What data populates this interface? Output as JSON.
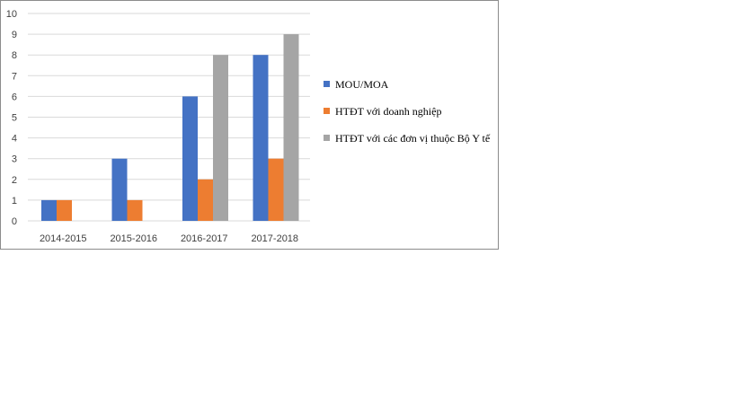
{
  "chart_data": {
    "type": "bar",
    "categories": [
      "2014-2015",
      "2015-2016",
      "2016-2017",
      "2017-2018"
    ],
    "series": [
      {
        "name": "MOU/MOA",
        "color": "#4472c4",
        "values": [
          1,
          3,
          6,
          8
        ]
      },
      {
        "name": "HTĐT  với doanh nghiệp",
        "color": "#ed7d31",
        "values": [
          1,
          1,
          2,
          3
        ]
      },
      {
        "name": "HTĐT  với các đơn vị thuộc Bộ Y tế",
        "color": "#a5a5a5",
        "values": [
          0,
          0,
          8,
          9
        ]
      }
    ],
    "ylim": [
      0,
      10
    ],
    "yticks": [
      "0",
      "1",
      "2",
      "3",
      "4",
      "5",
      "6",
      "7",
      "8",
      "9",
      "10"
    ],
    "grid": true,
    "legend_position": "right"
  }
}
